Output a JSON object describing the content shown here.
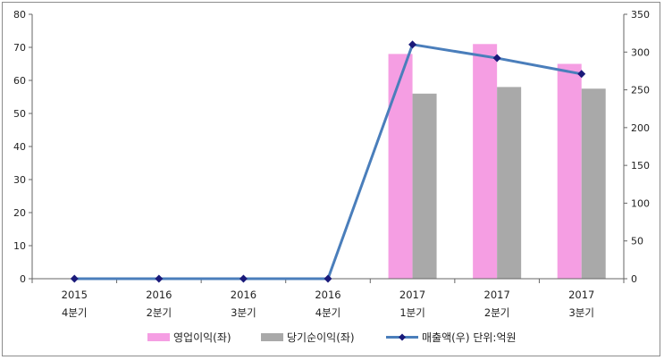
{
  "chart_data": {
    "type": "bar",
    "categories": [
      [
        "2015",
        "4분기"
      ],
      [
        "2016",
        "2분기"
      ],
      [
        "2016",
        "3분기"
      ],
      [
        "2016",
        "4분기"
      ],
      [
        "2017",
        "1분기"
      ],
      [
        "2017",
        "2분기"
      ],
      [
        "2017",
        "3분기"
      ]
    ],
    "series": [
      {
        "name": "영업이익(좌)",
        "kind": "bar",
        "axis": "left",
        "color": "#f59ee3",
        "values": [
          null,
          null,
          null,
          null,
          68,
          71,
          65
        ]
      },
      {
        "name": "당기순이익(좌)",
        "kind": "bar",
        "axis": "left",
        "color": "#a9a9a9",
        "values": [
          null,
          null,
          null,
          null,
          56,
          58,
          57.5
        ]
      },
      {
        "name": "매출액(우)",
        "kind": "line",
        "axis": "right",
        "color": "#4a7ebb",
        "marker_color": "#1a1a7a",
        "values": [
          0,
          0,
          0,
          0,
          310,
          292,
          271
        ]
      }
    ],
    "left_axis": {
      "min": 0,
      "max": 80,
      "step": 10
    },
    "right_axis": {
      "min": 0,
      "max": 350,
      "step": 50
    },
    "unit_note": "단위:억원",
    "legend_position": "bottom"
  }
}
